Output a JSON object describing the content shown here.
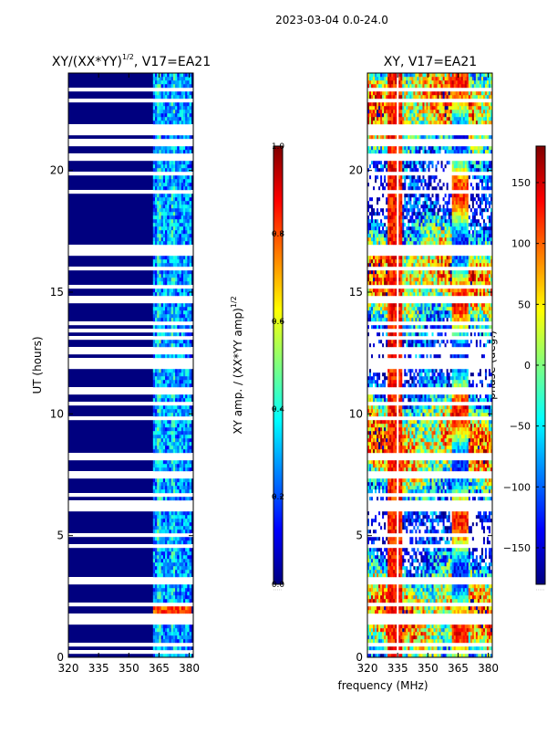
{
  "suptitle": "2023-03-04 0.0-24.0",
  "colors": {
    "background": "#ffffff",
    "jet": [
      "#00007f",
      "#0000ff",
      "#007fff",
      "#00ffff",
      "#7fff7f",
      "#ffff00",
      "#ff7f00",
      "#ff0000",
      "#7f0000"
    ]
  },
  "chart_data": [
    {
      "type": "heatmap",
      "title_prefix": "XY/(XX*YY)",
      "title_exp": "1/2",
      "title_suffix": ", V17=EA21",
      "xlabel": "",
      "ylabel": "UT (hours)",
      "xlim": [
        320,
        382
      ],
      "ylim": [
        0,
        24
      ],
      "xticks": [
        320,
        335,
        350,
        365,
        380
      ],
      "yticks": [
        0,
        5,
        10,
        15,
        20
      ],
      "colorbar": {
        "label_prefix": "XY amp. / (XX*YY amp)",
        "label_exp": "1/2",
        "range": [
          0.0,
          1.0
        ],
        "ticks": [
          0.0,
          0.2,
          0.4,
          0.6,
          0.8,
          1.0
        ],
        "tick_labels": [
          "0.0",
          "0.2",
          "0.4",
          "0.6",
          "0.8",
          "1.0"
        ]
      }
    },
    {
      "type": "heatmap",
      "title": "XY, V17=EA21",
      "xlabel": "frequency (MHz)",
      "ylabel": "",
      "xlim": [
        320,
        382
      ],
      "ylim": [
        0,
        24
      ],
      "xticks": [
        320,
        335,
        350,
        365,
        380
      ],
      "yticks": [
        0,
        5,
        10,
        15,
        20
      ],
      "colorbar": {
        "label": "phase (deg.)",
        "range": [
          -180,
          180
        ],
        "ticks": [
          -150,
          -100,
          -50,
          0,
          50,
          100,
          150
        ],
        "tick_labels": [
          "−150",
          "−100",
          "−50",
          "0",
          "50",
          "100",
          "150"
        ]
      }
    }
  ]
}
